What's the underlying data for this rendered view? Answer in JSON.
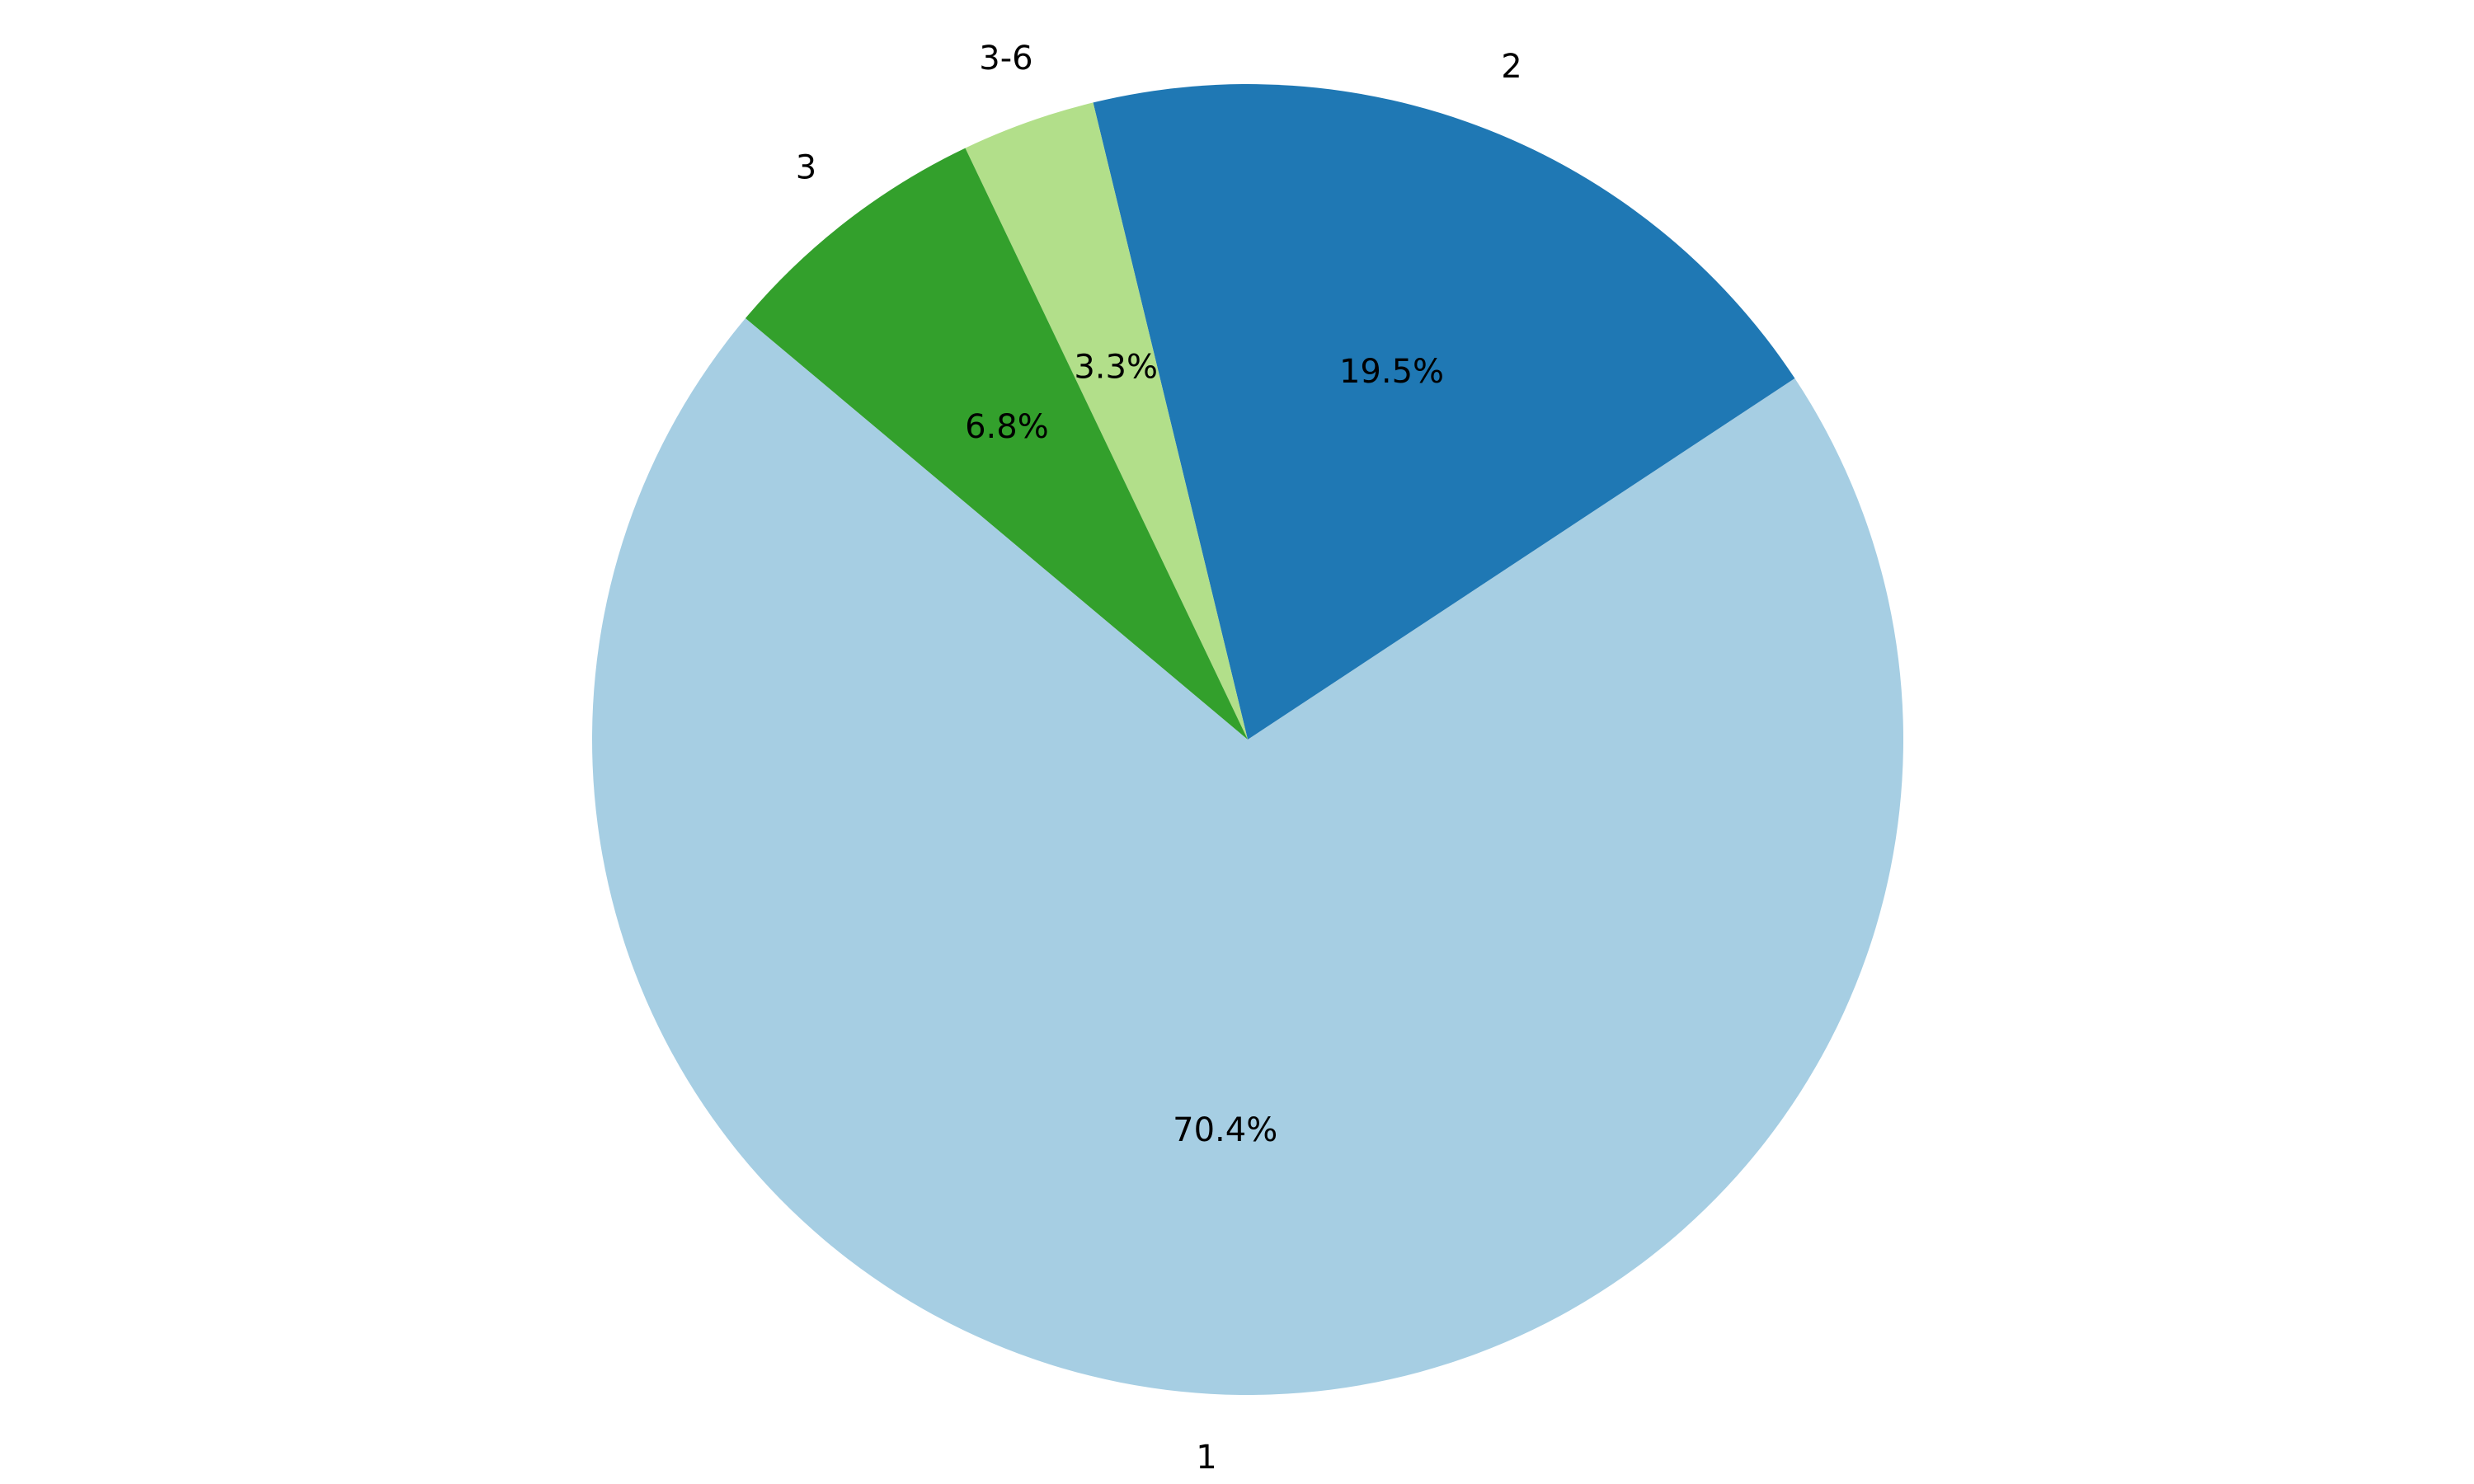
{
  "chart_data": {
    "type": "pie",
    "categories": [
      "1",
      "2",
      "3-6",
      "3"
    ],
    "values": [
      70.4,
      19.5,
      3.3,
      6.8
    ],
    "value_labels": [
      "70.4%",
      "19.5%",
      "3.3%",
      "6.8%"
    ],
    "colors": [
      "#a6cee3",
      "#1f78b4",
      "#b2df8a",
      "#33a02c"
    ]
  }
}
